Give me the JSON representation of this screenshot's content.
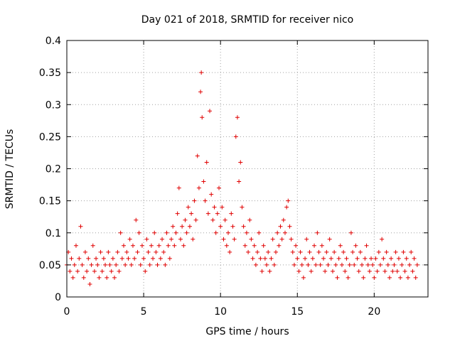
{
  "chart_data": {
    "type": "scatter",
    "title": "Day 021 of 2018, SRMTID for receiver nico",
    "xlabel": "GPS time / hours",
    "ylabel": "SRMTID / TECUs",
    "xlim": [
      0,
      23.5
    ],
    "ylim": [
      0,
      0.4
    ],
    "xticks": [
      "0",
      "5",
      "10",
      "15",
      "20"
    ],
    "xtick_values": [
      0,
      5,
      10,
      15,
      20
    ],
    "yticks": [
      "0",
      "0.05",
      "0.1",
      "0.15",
      "0.2",
      "0.25",
      "0.3",
      "0.35",
      "0.4"
    ],
    "ytick_values": [
      0,
      0.05,
      0.1,
      0.15,
      0.2,
      0.25,
      0.3,
      0.35,
      0.4
    ],
    "grid": true,
    "marker": "plus",
    "color": "#e00000",
    "x_range_of_points": [
      0,
      22.8
    ],
    "series": [
      {
        "points": [
          [
            0.0,
            0.05
          ],
          [
            0.1,
            0.07
          ],
          [
            0.2,
            0.04
          ],
          [
            0.3,
            0.06
          ],
          [
            0.4,
            0.03
          ],
          [
            0.5,
            0.05
          ],
          [
            0.6,
            0.08
          ],
          [
            0.7,
            0.04
          ],
          [
            0.8,
            0.06
          ],
          [
            0.9,
            0.11
          ],
          [
            1.0,
            0.05
          ],
          [
            1.1,
            0.03
          ],
          [
            1.2,
            0.07
          ],
          [
            1.3,
            0.04
          ],
          [
            1.4,
            0.06
          ],
          [
            1.5,
            0.02
          ],
          [
            1.6,
            0.05
          ],
          [
            1.7,
            0.08
          ],
          [
            1.8,
            0.04
          ],
          [
            1.9,
            0.06
          ],
          [
            2.0,
            0.05
          ],
          [
            2.1,
            0.03
          ],
          [
            2.2,
            0.07
          ],
          [
            2.3,
            0.04
          ],
          [
            2.4,
            0.06
          ],
          [
            2.5,
            0.05
          ],
          [
            2.6,
            0.03
          ],
          [
            2.7,
            0.07
          ],
          [
            2.8,
            0.05
          ],
          [
            2.9,
            0.04
          ],
          [
            3.0,
            0.06
          ],
          [
            3.1,
            0.03
          ],
          [
            3.2,
            0.05
          ],
          [
            3.3,
            0.07
          ],
          [
            3.4,
            0.04
          ],
          [
            3.5,
            0.1
          ],
          [
            3.6,
            0.06
          ],
          [
            3.7,
            0.08
          ],
          [
            3.8,
            0.05
          ],
          [
            3.9,
            0.07
          ],
          [
            4.0,
            0.06
          ],
          [
            4.1,
            0.09
          ],
          [
            4.2,
            0.05
          ],
          [
            4.3,
            0.08
          ],
          [
            4.4,
            0.06
          ],
          [
            4.5,
            0.12
          ],
          [
            4.6,
            0.07
          ],
          [
            4.7,
            0.1
          ],
          [
            4.8,
            0.05
          ],
          [
            4.9,
            0.08
          ],
          [
            5.0,
            0.06
          ],
          [
            5.1,
            0.04
          ],
          [
            5.2,
            0.09
          ],
          [
            5.3,
            0.07
          ],
          [
            5.4,
            0.05
          ],
          [
            5.5,
            0.08
          ],
          [
            5.6,
            0.06
          ],
          [
            5.7,
            0.1
          ],
          [
            5.8,
            0.07
          ],
          [
            5.9,
            0.05
          ],
          [
            6.0,
            0.08
          ],
          [
            6.1,
            0.06
          ],
          [
            6.2,
            0.09
          ],
          [
            6.3,
            0.07
          ],
          [
            6.4,
            0.05
          ],
          [
            6.5,
            0.1
          ],
          [
            6.6,
            0.08
          ],
          [
            6.7,
            0.06
          ],
          [
            6.8,
            0.09
          ],
          [
            6.9,
            0.11
          ],
          [
            7.0,
            0.08
          ],
          [
            7.1,
            0.1
          ],
          [
            7.2,
            0.13
          ],
          [
            7.3,
            0.17
          ],
          [
            7.4,
            0.09
          ],
          [
            7.5,
            0.11
          ],
          [
            7.6,
            0.08
          ],
          [
            7.7,
            0.12
          ],
          [
            7.8,
            0.1
          ],
          [
            7.9,
            0.14
          ],
          [
            8.0,
            0.11
          ],
          [
            8.1,
            0.13
          ],
          [
            8.2,
            0.09
          ],
          [
            8.3,
            0.15
          ],
          [
            8.4,
            0.12
          ],
          [
            8.5,
            0.22
          ],
          [
            8.6,
            0.17
          ],
          [
            8.7,
            0.32
          ],
          [
            8.75,
            0.35
          ],
          [
            8.8,
            0.28
          ],
          [
            8.9,
            0.18
          ],
          [
            9.0,
            0.15
          ],
          [
            9.1,
            0.21
          ],
          [
            9.2,
            0.13
          ],
          [
            9.3,
            0.29
          ],
          [
            9.4,
            0.16
          ],
          [
            9.5,
            0.12
          ],
          [
            9.6,
            0.14
          ],
          [
            9.7,
            0.1
          ],
          [
            9.8,
            0.13
          ],
          [
            9.9,
            0.17
          ],
          [
            10.0,
            0.11
          ],
          [
            10.1,
            0.14
          ],
          [
            10.2,
            0.09
          ],
          [
            10.3,
            0.12
          ],
          [
            10.4,
            0.08
          ],
          [
            10.5,
            0.1
          ],
          [
            10.6,
            0.07
          ],
          [
            10.7,
            0.13
          ],
          [
            10.8,
            0.11
          ],
          [
            10.9,
            0.09
          ],
          [
            11.0,
            0.25
          ],
          [
            11.1,
            0.28
          ],
          [
            11.2,
            0.18
          ],
          [
            11.3,
            0.21
          ],
          [
            11.4,
            0.14
          ],
          [
            11.5,
            0.11
          ],
          [
            11.6,
            0.08
          ],
          [
            11.7,
            0.1
          ],
          [
            11.8,
            0.07
          ],
          [
            11.9,
            0.12
          ],
          [
            12.0,
            0.09
          ],
          [
            12.1,
            0.06
          ],
          [
            12.2,
            0.08
          ],
          [
            12.3,
            0.05
          ],
          [
            12.4,
            0.07
          ],
          [
            12.5,
            0.1
          ],
          [
            12.6,
            0.06
          ],
          [
            12.7,
            0.04
          ],
          [
            12.8,
            0.08
          ],
          [
            12.9,
            0.06
          ],
          [
            13.0,
            0.05
          ],
          [
            13.1,
            0.07
          ],
          [
            13.2,
            0.04
          ],
          [
            13.3,
            0.06
          ],
          [
            13.4,
            0.09
          ],
          [
            13.5,
            0.05
          ],
          [
            13.6,
            0.07
          ],
          [
            13.7,
            0.1
          ],
          [
            13.8,
            0.08
          ],
          [
            13.9,
            0.11
          ],
          [
            14.0,
            0.09
          ],
          [
            14.1,
            0.12
          ],
          [
            14.2,
            0.1
          ],
          [
            14.3,
            0.14
          ],
          [
            14.4,
            0.15
          ],
          [
            14.5,
            0.11
          ],
          [
            14.6,
            0.09
          ],
          [
            14.7,
            0.07
          ],
          [
            14.8,
            0.05
          ],
          [
            14.9,
            0.08
          ],
          [
            15.0,
            0.06
          ],
          [
            15.1,
            0.04
          ],
          [
            15.2,
            0.07
          ],
          [
            15.3,
            0.05
          ],
          [
            15.4,
            0.03
          ],
          [
            15.5,
            0.06
          ],
          [
            15.6,
            0.09
          ],
          [
            15.7,
            0.05
          ],
          [
            15.8,
            0.07
          ],
          [
            15.9,
            0.04
          ],
          [
            16.0,
            0.06
          ],
          [
            16.1,
            0.08
          ],
          [
            16.2,
            0.05
          ],
          [
            16.3,
            0.1
          ],
          [
            16.4,
            0.07
          ],
          [
            16.5,
            0.05
          ],
          [
            16.6,
            0.08
          ],
          [
            16.7,
            0.06
          ],
          [
            16.8,
            0.04
          ],
          [
            16.9,
            0.07
          ],
          [
            17.0,
            0.05
          ],
          [
            17.1,
            0.09
          ],
          [
            17.2,
            0.06
          ],
          [
            17.3,
            0.04
          ],
          [
            17.4,
            0.07
          ],
          [
            17.5,
            0.05
          ],
          [
            17.6,
            0.03
          ],
          [
            17.7,
            0.06
          ],
          [
            17.8,
            0.08
          ],
          [
            17.9,
            0.05
          ],
          [
            18.0,
            0.07
          ],
          [
            18.1,
            0.04
          ],
          [
            18.2,
            0.06
          ],
          [
            18.3,
            0.03
          ],
          [
            18.4,
            0.05
          ],
          [
            18.5,
            0.1
          ],
          [
            18.6,
            0.07
          ],
          [
            18.7,
            0.05
          ],
          [
            18.8,
            0.08
          ],
          [
            18.9,
            0.06
          ],
          [
            19.0,
            0.04
          ],
          [
            19.1,
            0.07
          ],
          [
            19.2,
            0.05
          ],
          [
            19.3,
            0.03
          ],
          [
            19.4,
            0.06
          ],
          [
            19.5,
            0.08
          ],
          [
            19.6,
            0.05
          ],
          [
            19.7,
            0.04
          ],
          [
            19.8,
            0.06
          ],
          [
            19.9,
            0.05
          ],
          [
            20.0,
            0.03
          ],
          [
            20.1,
            0.06
          ],
          [
            20.2,
            0.04
          ],
          [
            20.3,
            0.07
          ],
          [
            20.4,
            0.05
          ],
          [
            20.5,
            0.09
          ],
          [
            20.6,
            0.06
          ],
          [
            20.7,
            0.04
          ],
          [
            20.8,
            0.07
          ],
          [
            20.9,
            0.05
          ],
          [
            21.0,
            0.03
          ],
          [
            21.1,
            0.06
          ],
          [
            21.2,
            0.04
          ],
          [
            21.3,
            0.05
          ],
          [
            21.4,
            0.07
          ],
          [
            21.5,
            0.04
          ],
          [
            21.6,
            0.06
          ],
          [
            21.7,
            0.03
          ],
          [
            21.8,
            0.05
          ],
          [
            21.9,
            0.07
          ],
          [
            22.0,
            0.04
          ],
          [
            22.1,
            0.06
          ],
          [
            22.2,
            0.03
          ],
          [
            22.3,
            0.05
          ],
          [
            22.4,
            0.07
          ],
          [
            22.5,
            0.04
          ],
          [
            22.6,
            0.06
          ],
          [
            22.7,
            0.03
          ],
          [
            22.8,
            0.05
          ]
        ]
      }
    ]
  }
}
